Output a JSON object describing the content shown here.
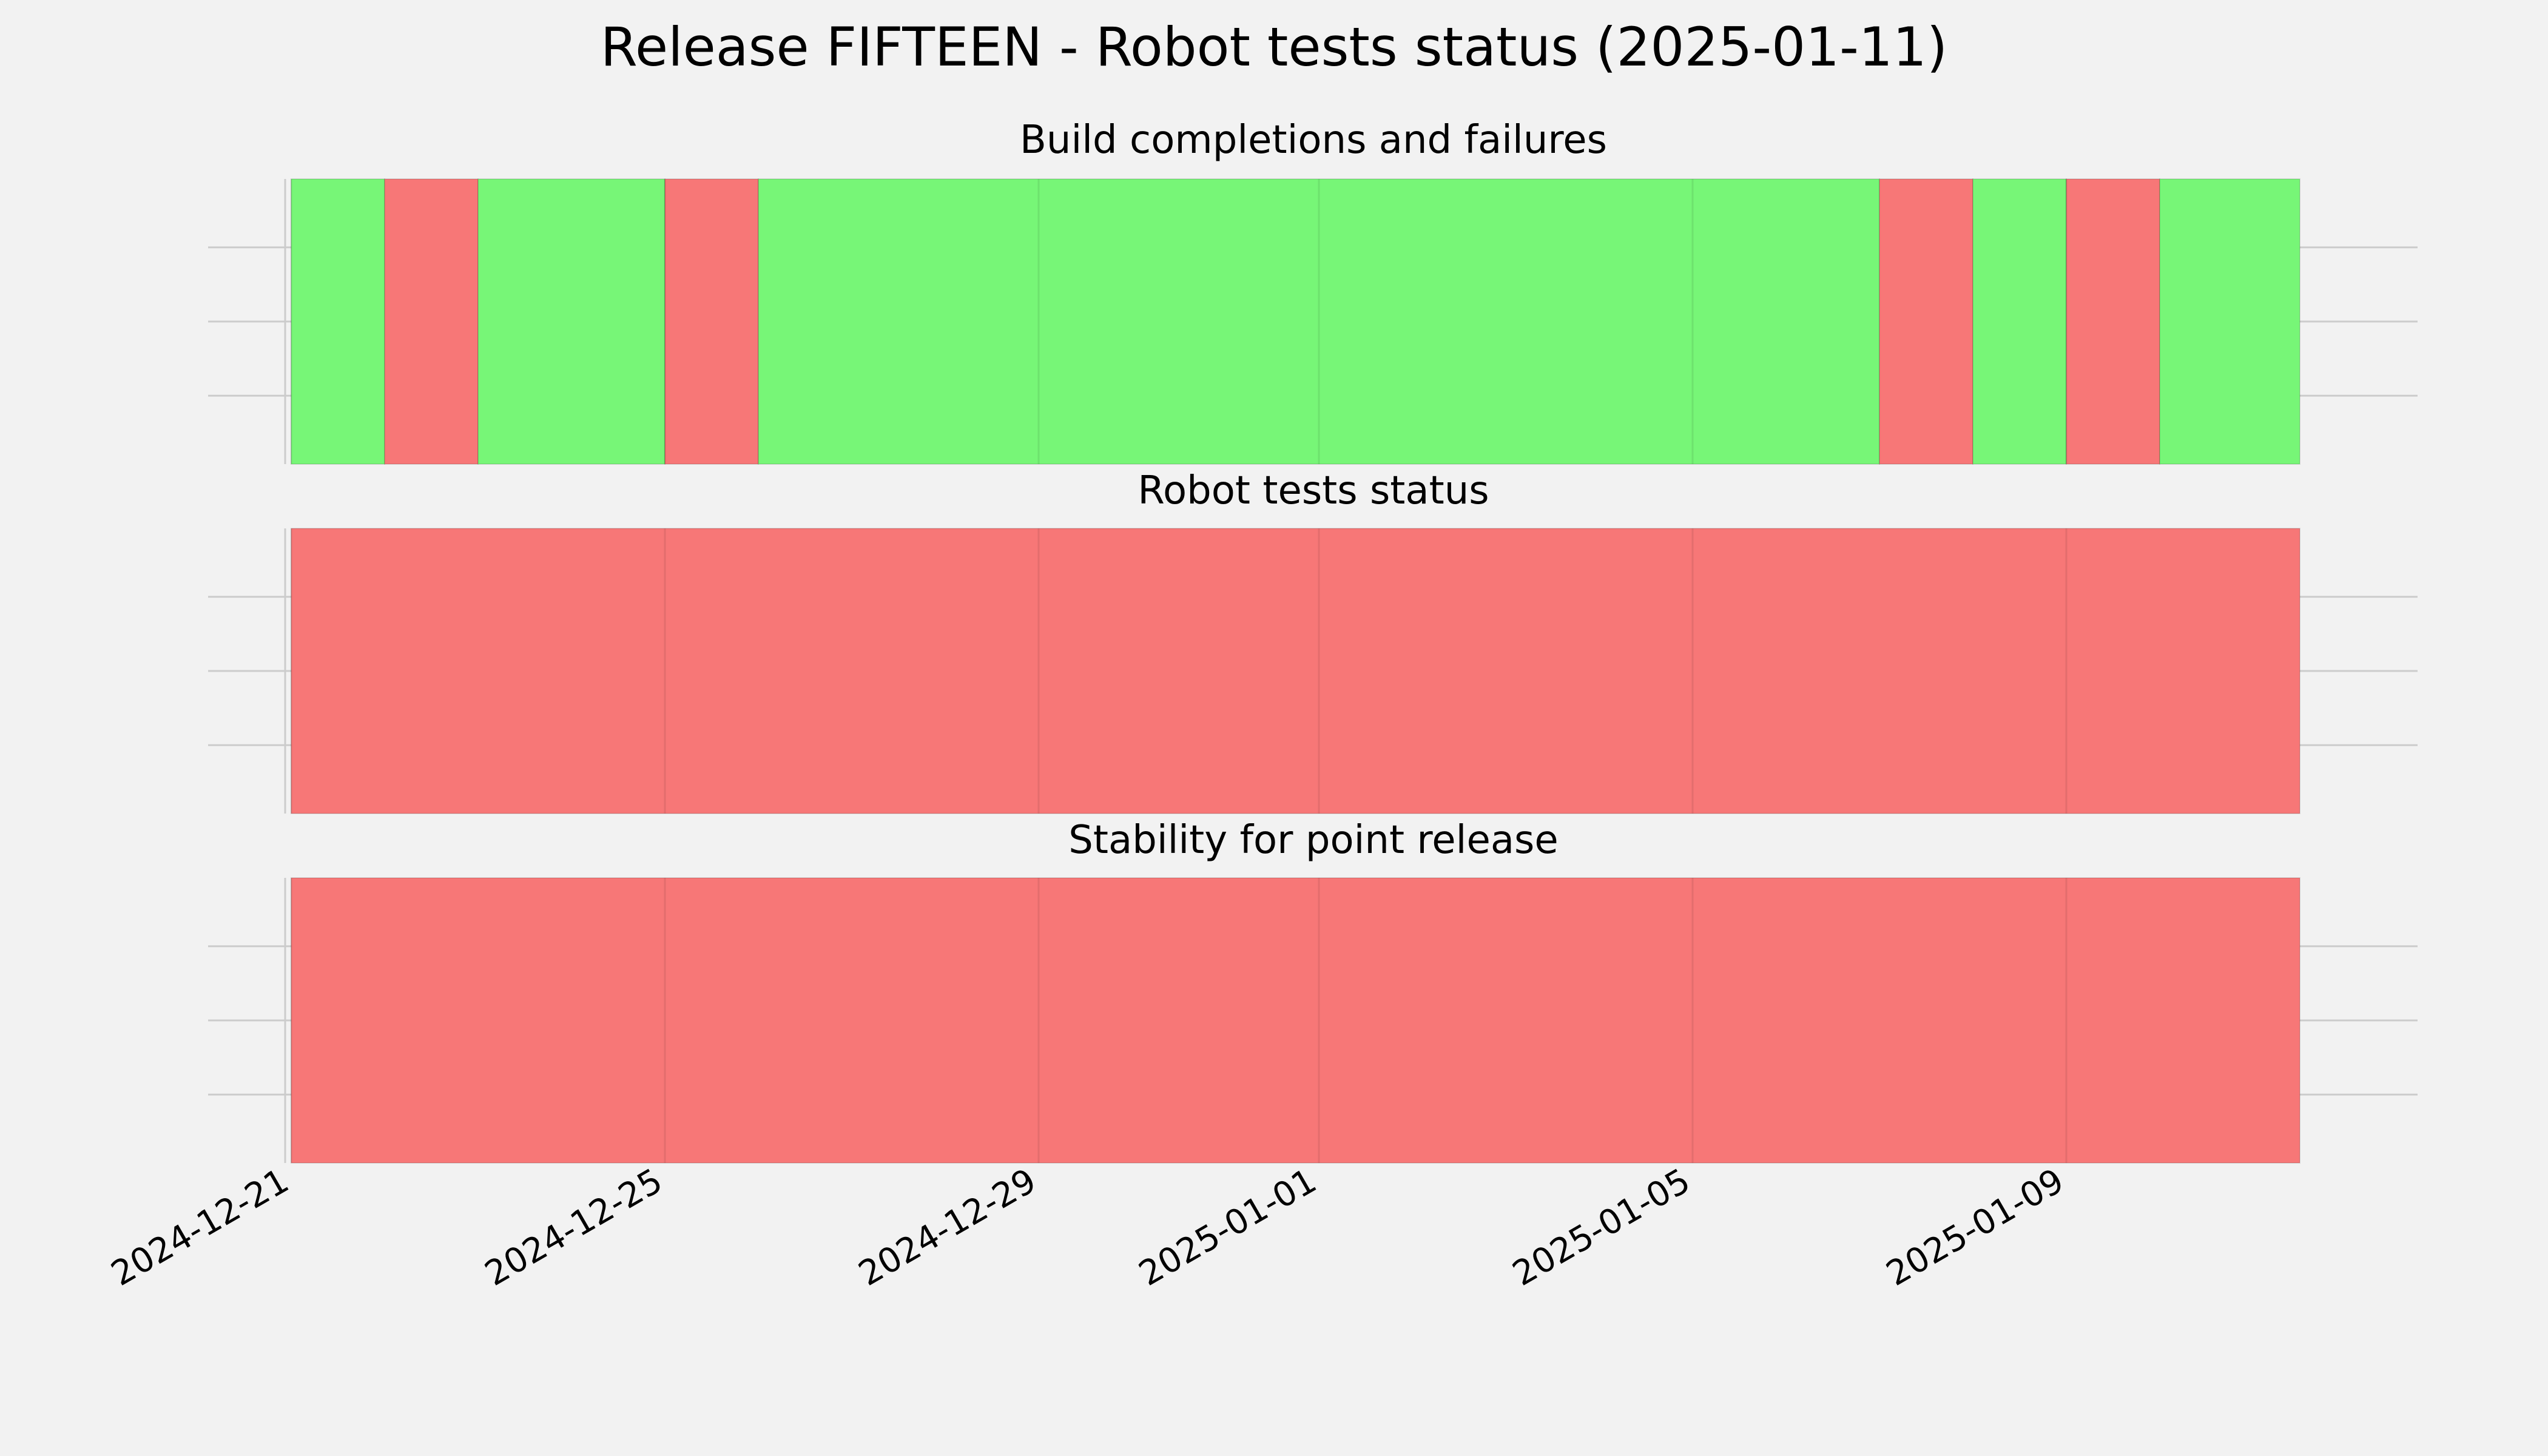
{
  "chart_data": {
    "type": "timeline",
    "title": "Release FIFTEEN - Robot tests status (2025-01-11)",
    "colors": {
      "pass": "#77f677",
      "fail": "#f77777",
      "background": "#f2f2f2",
      "grid": "#cccccc"
    },
    "x_axis": {
      "range": [
        "2024-12-21",
        "2025-01-12"
      ],
      "tick_labels": [
        "2024-12-21",
        "2024-12-25",
        "2024-12-29",
        "2025-01-01",
        "2025-01-05",
        "2025-01-09"
      ]
    },
    "panels": [
      {
        "title": "Build completions and failures",
        "segments": [
          {
            "start": "2024-12-21",
            "end": "2024-12-22",
            "status": "pass"
          },
          {
            "start": "2024-12-22",
            "end": "2024-12-23",
            "status": "fail"
          },
          {
            "start": "2024-12-23",
            "end": "2024-12-25",
            "status": "pass"
          },
          {
            "start": "2024-12-25",
            "end": "2024-12-26",
            "status": "fail"
          },
          {
            "start": "2024-12-26",
            "end": "2025-01-07",
            "status": "pass"
          },
          {
            "start": "2025-01-07",
            "end": "2025-01-08",
            "status": "fail"
          },
          {
            "start": "2025-01-08",
            "end": "2025-01-09",
            "status": "pass"
          },
          {
            "start": "2025-01-09",
            "end": "2025-01-10",
            "status": "fail"
          },
          {
            "start": "2025-01-10",
            "end": "2025-01-11T12:00",
            "status": "pass"
          }
        ]
      },
      {
        "title": "Robot tests status",
        "segments": [
          {
            "start": "2024-12-21",
            "end": "2025-01-11T12:00",
            "status": "fail"
          }
        ]
      },
      {
        "title": "Stability for point release",
        "segments": [
          {
            "start": "2024-12-21",
            "end": "2025-01-11T12:00",
            "status": "fail"
          }
        ]
      }
    ]
  }
}
